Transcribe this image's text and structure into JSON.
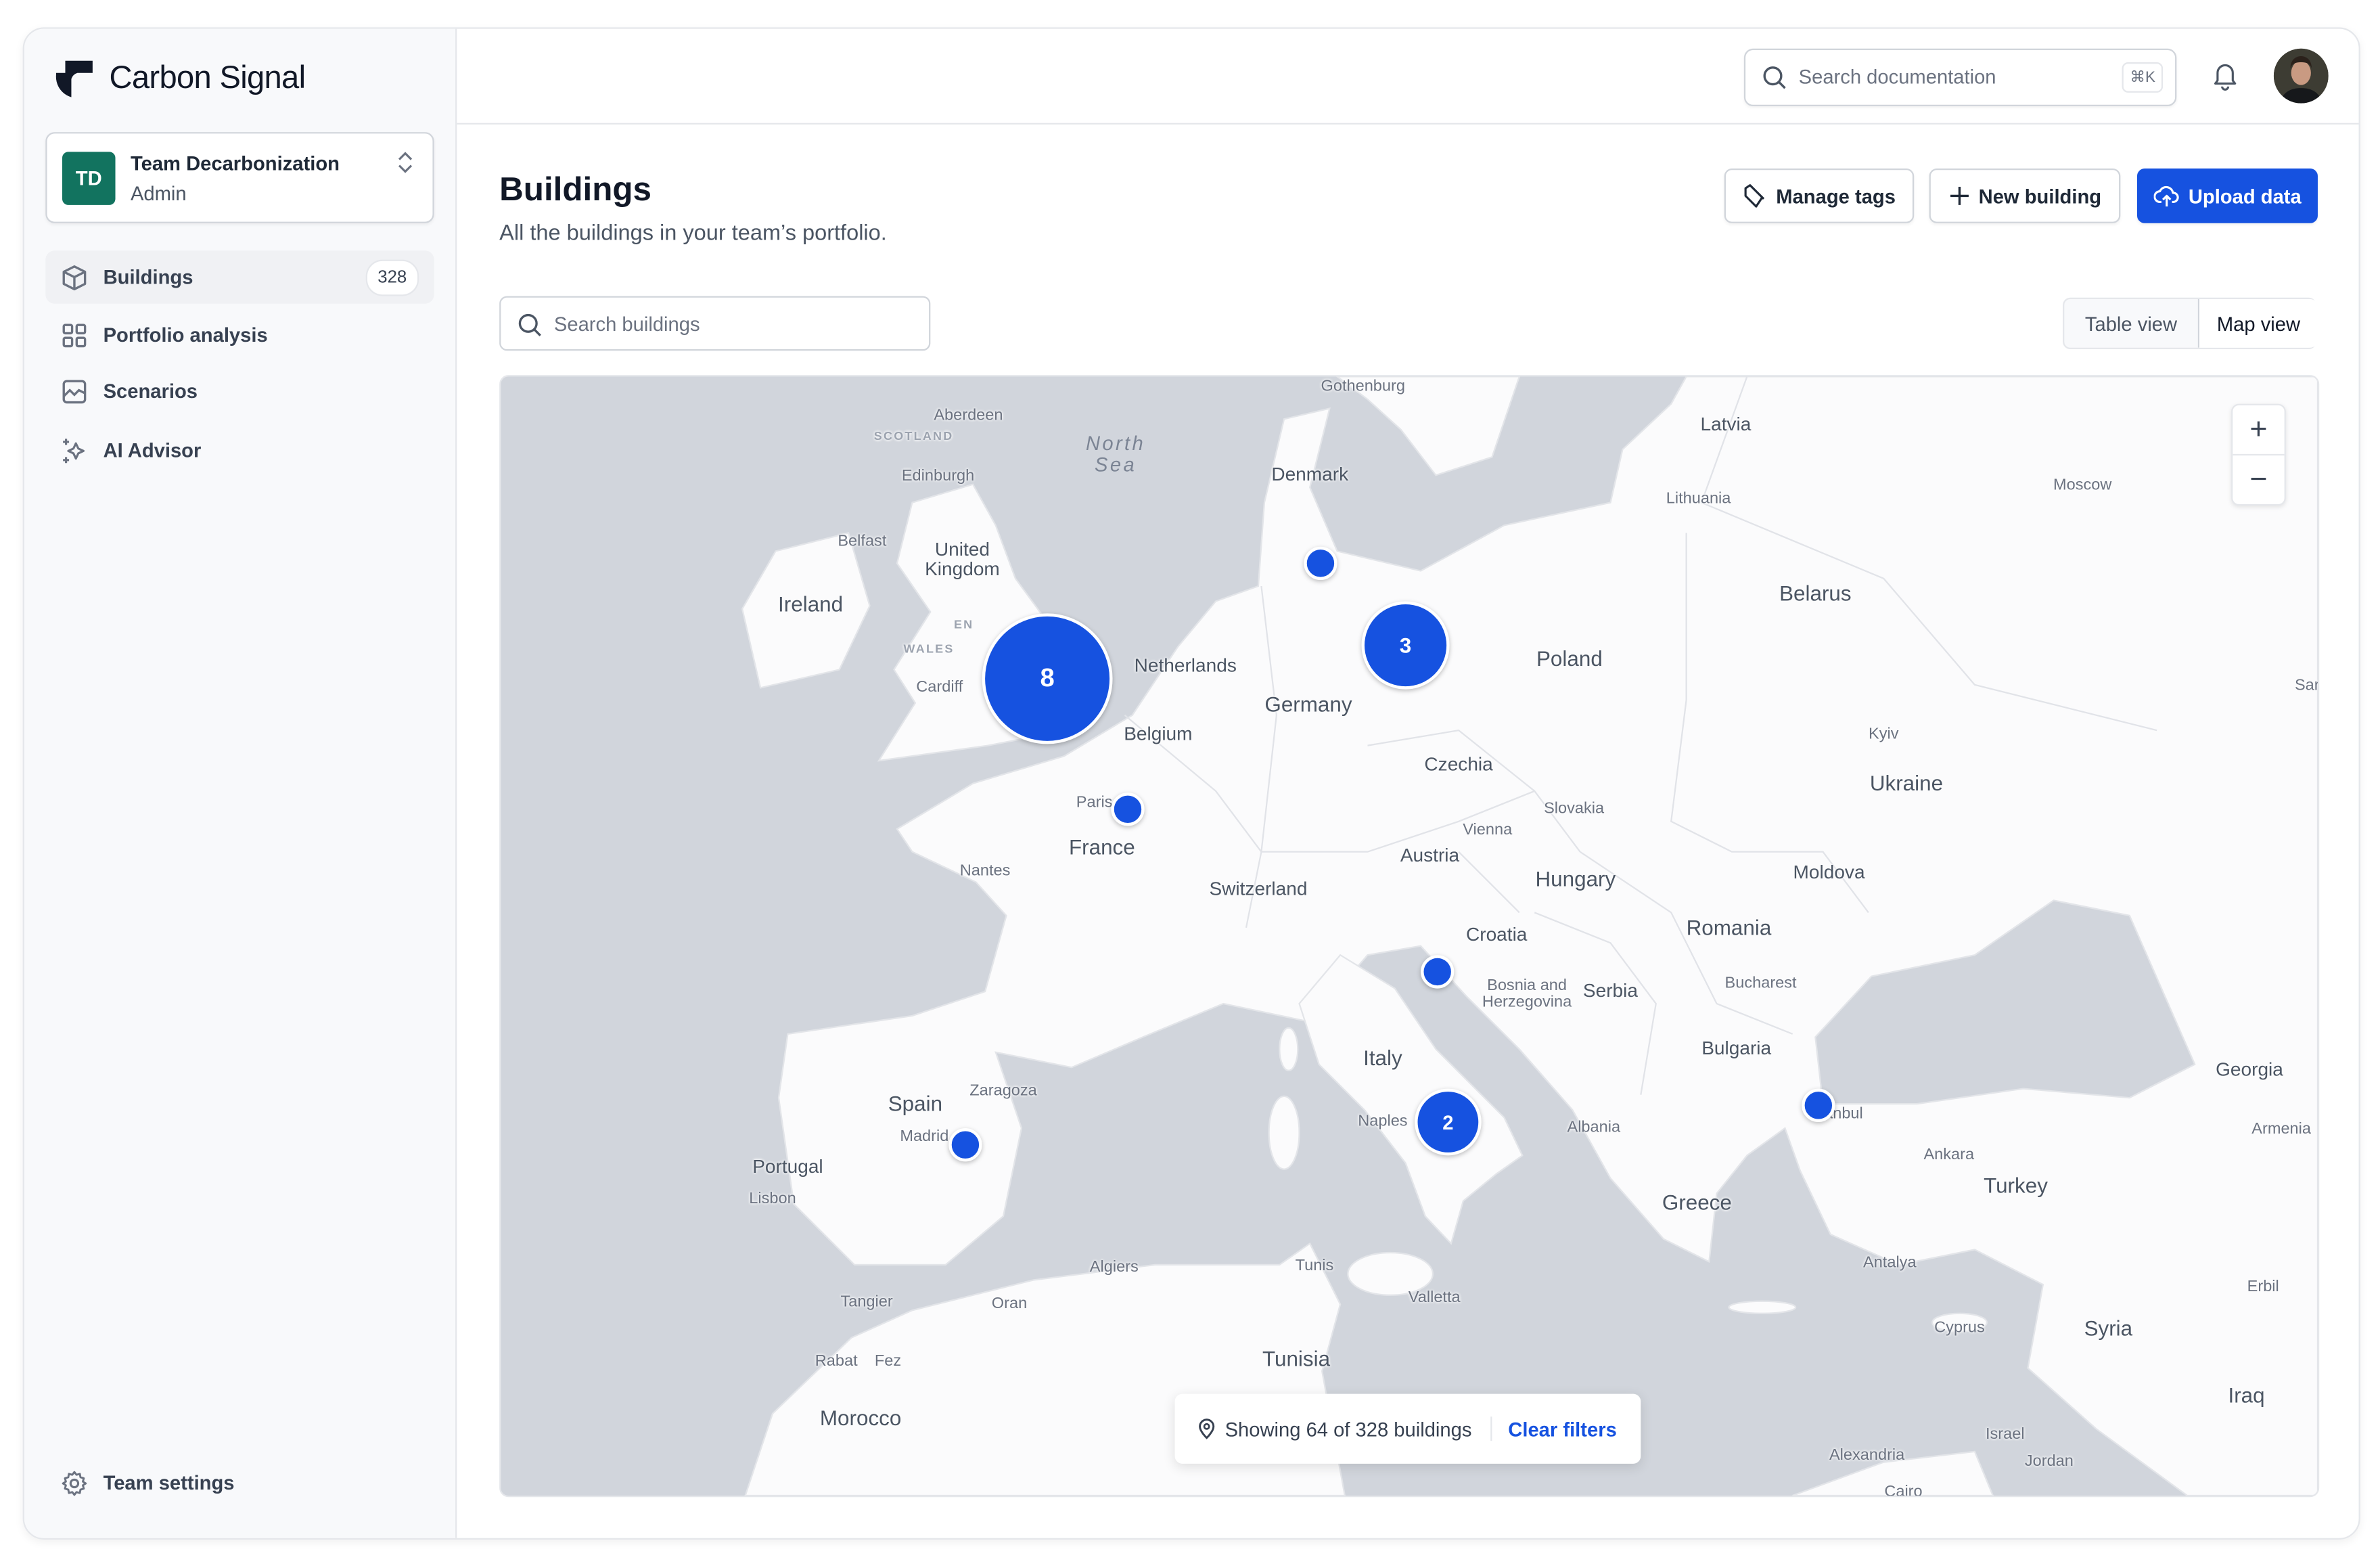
{
  "app": {
    "name": "Carbon Signal"
  },
  "team": {
    "initials": "TD",
    "name": "Team Decarbonization",
    "role": "Admin"
  },
  "sidebar": {
    "items": [
      {
        "label": "Buildings",
        "badge": "328",
        "icon": "cube-icon",
        "active": true
      },
      {
        "label": "Portfolio analysis",
        "icon": "grid-icon"
      },
      {
        "label": "Scenarios",
        "icon": "chart-icon"
      },
      {
        "label": "AI Advisor",
        "icon": "sparkles-icon"
      }
    ],
    "settings_label": "Team settings"
  },
  "header": {
    "search_placeholder": "Search documentation",
    "shortcut": "⌘K"
  },
  "page": {
    "title": "Buildings",
    "subtitle": "All the buildings in your team’s portfolio.",
    "manage_tags": "Manage tags",
    "new_building": "New building",
    "upload_data": "Upload data",
    "search_placeholder": "Search buildings",
    "views": [
      "Table view",
      "Map view"
    ],
    "active_view": "Map view"
  },
  "colors": {
    "accent": "#1652e0",
    "team": "#12735f",
    "sea": "#d1d5dc",
    "land": "#fbfbfc"
  },
  "map": {
    "labels": [
      "Gothenburg",
      "Aberdeen",
      "SCOTLAND",
      "Edinburgh",
      "North\nSea",
      "Denmark",
      "Latvia",
      "Lithuania",
      "Moscow",
      "Belfast",
      "United\nKingdom",
      "Ireland",
      "Belarus",
      "WALES",
      "EN",
      "Netherlands",
      "Poland",
      "Cardiff",
      "Germany",
      "Belgium",
      "Kyiv",
      "Czechia",
      "Ukraine",
      "Sar",
      "Paris",
      "Slovakia",
      "Vienna",
      "France",
      "Austria",
      "Nantes",
      "Moldova",
      "Hungary",
      "Switzerland",
      "Croatia",
      "Romania",
      "Bosnia and\nHerzegovina",
      "Serbia",
      "Bucharest",
      "Bulgaria",
      "Italy",
      "Georgia",
      "Zaragoza",
      "Spain",
      "Naples",
      "Istanbul",
      "Albania",
      "Armenia",
      "Madrid",
      "Ankara",
      "Portugal",
      "Turkey",
      "Greece",
      "Lisbon",
      "Algiers",
      "Tunis",
      "Antalya",
      "Erbil",
      "Valletta",
      "Tangier",
      "Oran",
      "Cyprus",
      "Syria",
      "Tunisia",
      "Rabat",
      "Fez",
      "Iraq",
      "Morocco",
      "Israel",
      "Alexandria",
      "Jordan",
      "Cairo"
    ],
    "markers": [
      {
        "count": "8"
      },
      {
        "count": "3"
      },
      {
        "count": "2"
      },
      {
        "count": ""
      },
      {
        "count": ""
      },
      {
        "count": ""
      },
      {
        "count": ""
      },
      {
        "count": ""
      }
    ],
    "zoom_in": "+",
    "zoom_out": "−",
    "status": "Showing 64 of 328 buildings",
    "clear_filters": "Clear filters"
  }
}
